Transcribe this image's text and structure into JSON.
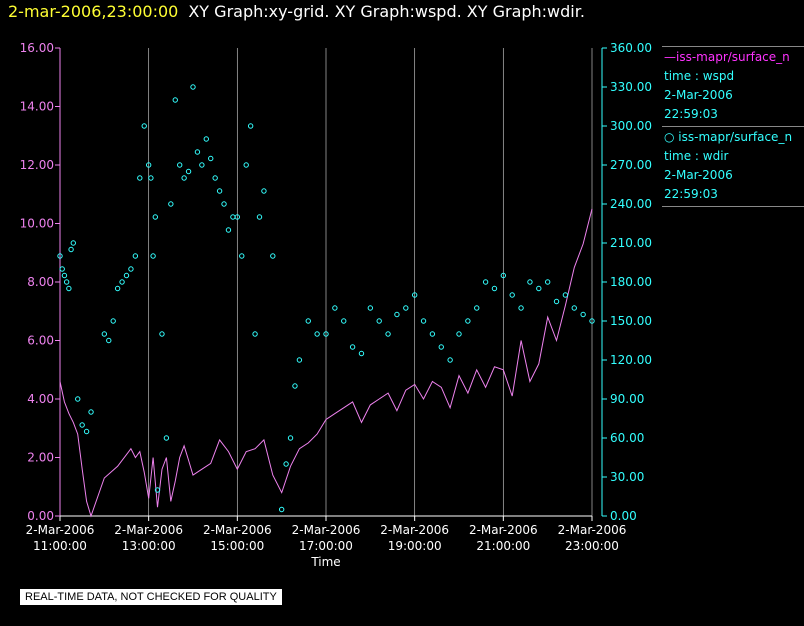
{
  "header": {
    "datetime": "2-mar-2006,23:00:00",
    "graphs": "XY Graph:xy-grid.  XY Graph:wspd.  XY Graph:wdir."
  },
  "legend": [
    {
      "line1": "—iss-mapr/surface_n",
      "line2": "time : wspd",
      "line3": "2-Mar-2006",
      "line4": "22:59:03"
    },
    {
      "line1": "○ iss-mapr/surface_n",
      "line2": "time : wdir",
      "line3": "2-Mar-2006",
      "line4": "22:59:03"
    }
  ],
  "footer": "REAL-TIME DATA, NOT CHECKED FOR QUALITY",
  "colors": {
    "wspd": "#ee82ee",
    "wdir": "#33ffff",
    "left_axis": "#ee82ee",
    "right_axis": "#33ffff",
    "grid": "#bbbbbb"
  },
  "chart_data": {
    "type": "line",
    "xlabel": "Time",
    "x_ticks": [
      {
        "d": "2-Mar-2006",
        "t": "11:00:00",
        "h": 11
      },
      {
        "d": "2-Mar-2006",
        "t": "13:00:00",
        "h": 13
      },
      {
        "d": "2-Mar-2006",
        "t": "15:00:00",
        "h": 15
      },
      {
        "d": "2-Mar-2006",
        "t": "17:00:00",
        "h": 17
      },
      {
        "d": "2-Mar-2006",
        "t": "19:00:00",
        "h": 19
      },
      {
        "d": "2-Mar-2006",
        "t": "21:00:00",
        "h": 21
      },
      {
        "d": "2-Mar-2006",
        "t": "23:00:00",
        "h": 23
      }
    ],
    "xlim": [
      11,
      23
    ],
    "y_left": {
      "lim": [
        0,
        16
      ],
      "ticks": [
        "0.00",
        "2.00",
        "4.00",
        "6.00",
        "8.00",
        "10.00",
        "12.00",
        "14.00",
        "16.00"
      ]
    },
    "y_right": {
      "lim": [
        0,
        360
      ],
      "ticks": [
        "0.00",
        "30.00",
        "60.00",
        "90.00",
        "120.00",
        "150.00",
        "180.00",
        "210.00",
        "240.00",
        "270.00",
        "300.00",
        "330.00",
        "360.00"
      ]
    },
    "series": [
      {
        "name": "iss-mapr/surface_n time : wspd",
        "axis": "left",
        "style": "line",
        "x": [
          11.0,
          11.1,
          11.2,
          11.3,
          11.4,
          11.5,
          11.6,
          11.7,
          12.0,
          12.3,
          12.5,
          12.6,
          12.7,
          12.8,
          12.9,
          13.0,
          13.1,
          13.2,
          13.3,
          13.4,
          13.5,
          13.6,
          13.7,
          13.8,
          13.9,
          14.0,
          14.2,
          14.4,
          14.6,
          14.8,
          15.0,
          15.2,
          15.4,
          15.6,
          15.8,
          16.0,
          16.2,
          16.4,
          16.6,
          16.8,
          17.0,
          17.2,
          17.4,
          17.6,
          17.8,
          18.0,
          18.2,
          18.4,
          18.6,
          18.8,
          19.0,
          19.2,
          19.4,
          19.6,
          19.8,
          20.0,
          20.2,
          20.4,
          20.6,
          20.8,
          21.0,
          21.2,
          21.4,
          21.6,
          21.8,
          22.0,
          22.2,
          22.4,
          22.6,
          22.8,
          23.0
        ],
        "y": [
          4.6,
          3.9,
          3.5,
          3.2,
          2.8,
          1.6,
          0.5,
          0.0,
          1.3,
          1.7,
          2.1,
          2.3,
          2.0,
          2.2,
          1.5,
          0.6,
          2.0,
          0.3,
          1.6,
          2.0,
          0.5,
          1.2,
          2.0,
          2.4,
          1.9,
          1.4,
          1.6,
          1.8,
          2.6,
          2.2,
          1.6,
          2.2,
          2.3,
          2.6,
          1.4,
          0.8,
          1.7,
          2.3,
          2.5,
          2.8,
          3.3,
          3.5,
          3.7,
          3.9,
          3.2,
          3.8,
          4.0,
          4.2,
          3.6,
          4.3,
          4.5,
          4.0,
          4.6,
          4.4,
          3.7,
          4.8,
          4.2,
          5.0,
          4.4,
          5.1,
          5.0,
          4.1,
          6.0,
          4.6,
          5.2,
          6.8,
          6.0,
          7.2,
          8.5,
          9.3,
          10.5
        ]
      },
      {
        "name": "iss-mapr/surface_n time : wdir",
        "axis": "right",
        "style": "scatter",
        "x": [
          11.0,
          11.05,
          11.1,
          11.15,
          11.2,
          11.25,
          11.3,
          11.4,
          11.5,
          11.6,
          11.7,
          12.0,
          12.1,
          12.2,
          12.3,
          12.4,
          12.5,
          12.6,
          12.7,
          12.8,
          12.9,
          13.0,
          13.05,
          13.1,
          13.15,
          13.2,
          13.3,
          13.4,
          13.5,
          13.6,
          13.7,
          13.8,
          13.9,
          14.0,
          14.1,
          14.2,
          14.3,
          14.4,
          14.5,
          14.6,
          14.7,
          14.8,
          14.9,
          15.0,
          15.1,
          15.2,
          15.3,
          15.4,
          15.5,
          15.6,
          15.8,
          16.0,
          16.1,
          16.2,
          16.3,
          16.4,
          16.6,
          16.8,
          17.0,
          17.2,
          17.4,
          17.6,
          17.8,
          18.0,
          18.2,
          18.4,
          18.6,
          18.8,
          19.0,
          19.2,
          19.4,
          19.6,
          19.8,
          20.0,
          20.2,
          20.4,
          20.6,
          20.8,
          21.0,
          21.2,
          21.4,
          21.6,
          21.8,
          22.0,
          22.2,
          22.4,
          22.6,
          22.8,
          23.0
        ],
        "y": [
          200,
          190,
          185,
          180,
          175,
          205,
          210,
          90,
          70,
          65,
          80,
          140,
          135,
          150,
          175,
          180,
          185,
          190,
          200,
          260,
          300,
          270,
          260,
          200,
          230,
          20,
          140,
          60,
          240,
          320,
          270,
          260,
          265,
          330,
          280,
          270,
          290,
          275,
          260,
          250,
          240,
          220,
          230,
          230,
          200,
          270,
          300,
          140,
          230,
          250,
          200,
          5,
          40,
          60,
          100,
          120,
          150,
          140,
          140,
          160,
          150,
          130,
          125,
          160,
          150,
          140,
          155,
          160,
          170,
          150,
          140,
          130,
          120,
          140,
          150,
          160,
          180,
          175,
          185,
          170,
          160,
          180,
          175,
          180,
          165,
          170,
          160,
          155,
          150
        ]
      }
    ]
  }
}
